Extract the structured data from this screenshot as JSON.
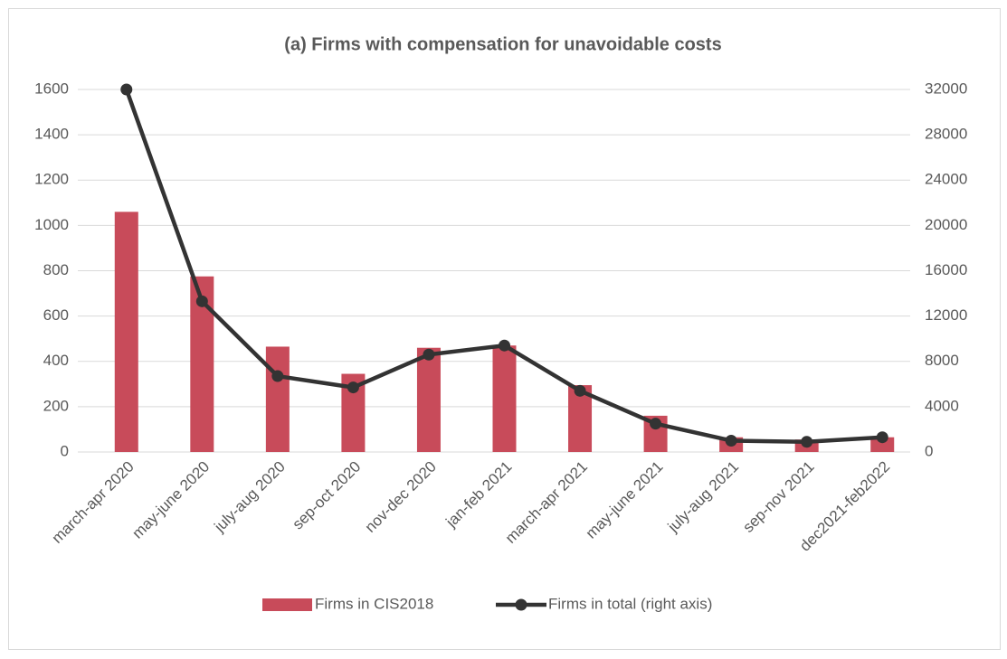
{
  "chart_data": {
    "type": "bar_line",
    "title": "(a) Firms with compensation for unavoidable costs",
    "categories": [
      "march-apr 2020",
      "may-june 2020",
      "july-aug 2020",
      "sep-oct 2020",
      "nov-dec 2020",
      "jan-feb 2021",
      "march-apr 2021",
      "may-june 2021",
      "july-aug 2021",
      "sep-nov 2021",
      "dec2021-feb2022"
    ],
    "series": [
      {
        "name": "Firms in CIS2018",
        "type": "bar",
        "color": "#c84b5a",
        "values": [
          1060,
          775,
          465,
          345,
          460,
          470,
          295,
          160,
          65,
          55,
          65
        ]
      },
      {
        "name": "Firms in total (right axis)",
        "type": "line",
        "color": "#333333",
        "axis": "y2",
        "values": [
          32000,
          13300,
          6700,
          5700,
          8600,
          9400,
          5400,
          2500,
          1000,
          900,
          1300
        ]
      }
    ],
    "ylim": [
      0,
      1600
    ],
    "yticks": [
      0,
      200,
      400,
      600,
      800,
      1000,
      1200,
      1400,
      1600
    ],
    "y2lim": [
      0,
      32000
    ],
    "y2ticks": [
      0,
      4000,
      8000,
      12000,
      16000,
      20000,
      24000,
      28000,
      32000
    ],
    "grid": true,
    "legend": "bottom"
  }
}
